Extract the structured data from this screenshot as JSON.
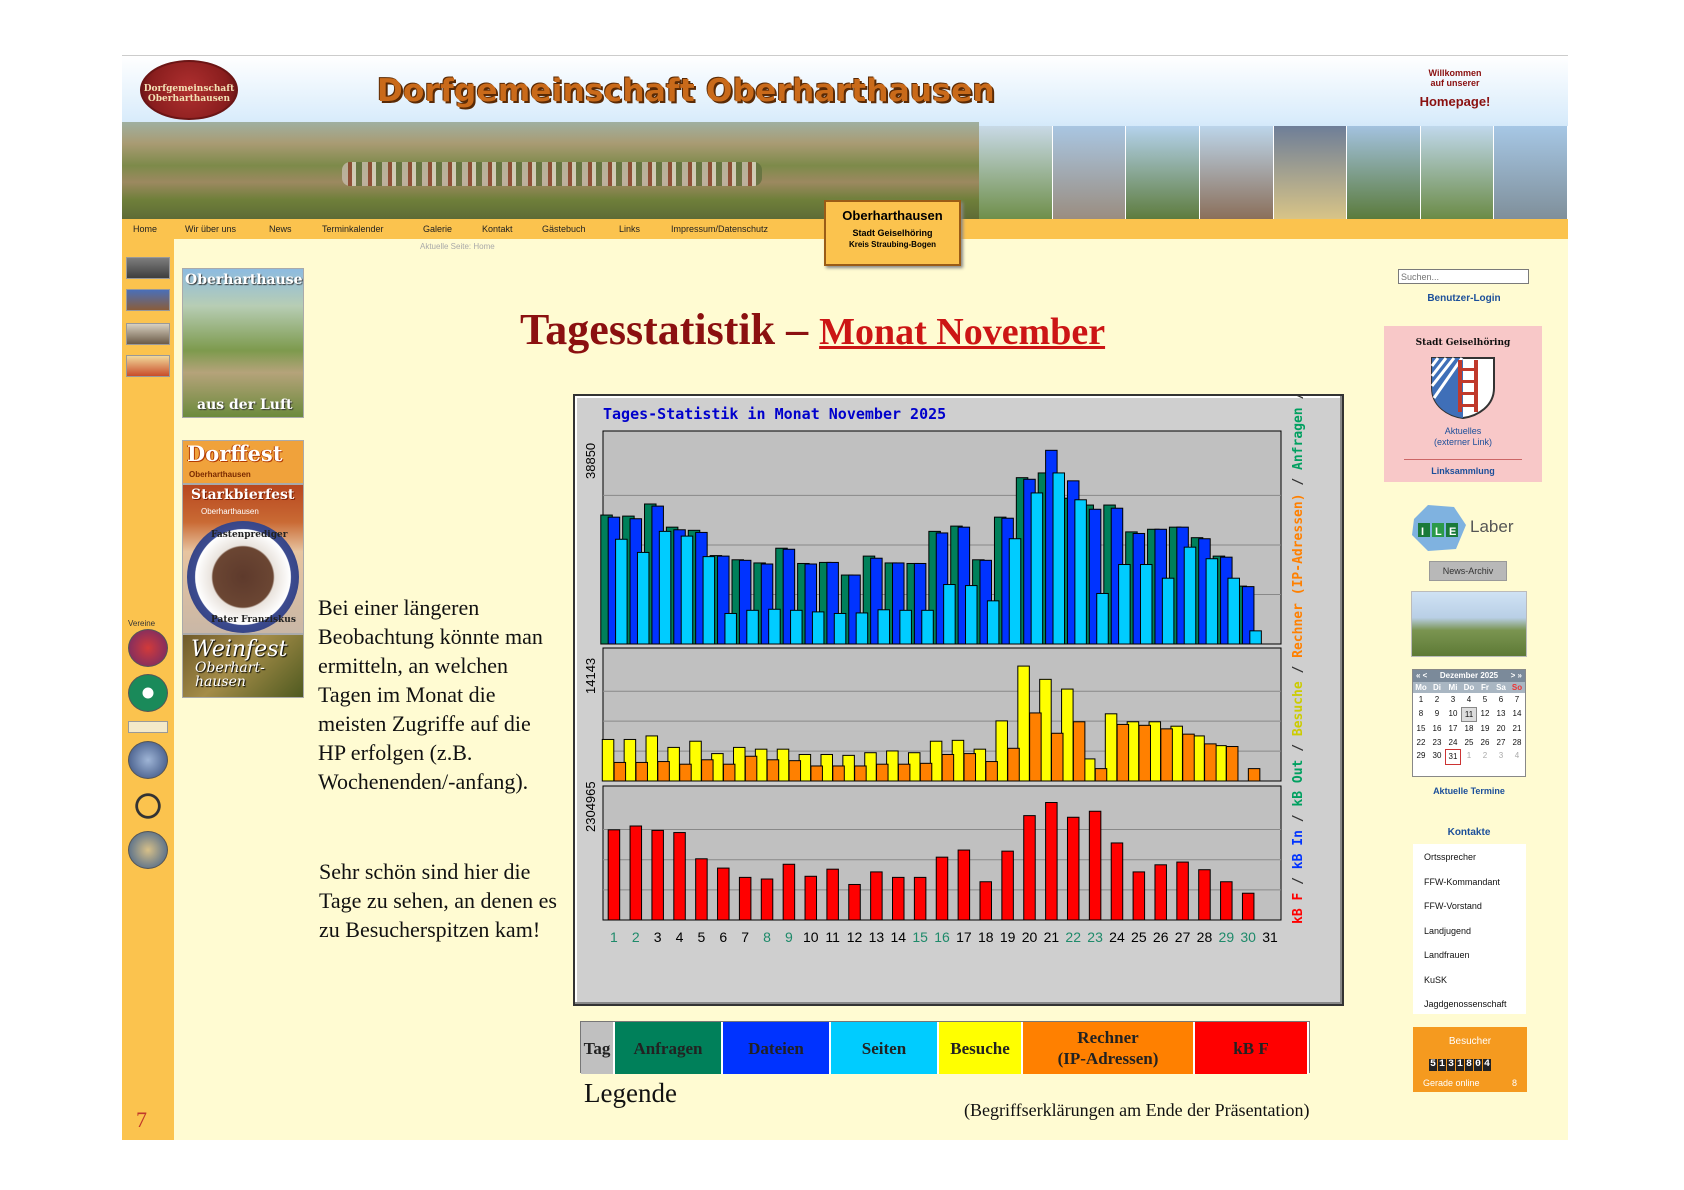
{
  "header": {
    "logo_text": "Dorfgemeinschaft Oberharthausen",
    "site_title": "Dorfgemeinschaft Oberharthausen",
    "welcome_line1": "Willkommen",
    "welcome_line2": "auf unserer",
    "welcome_line3": "Homepage!",
    "place_title": "Oberharthausen",
    "place_line2": "Stadt Geiselhöring",
    "place_line3": "Kreis Straubing-Bogen"
  },
  "nav": {
    "items": [
      "Home",
      "Wir über uns",
      "News",
      "Terminkalender",
      "Galerie",
      "Kontakt",
      "Gästebuch",
      "Links",
      "Impressum/Datenschutz"
    ],
    "current_page": "Aktuelle Seite: Home"
  },
  "left_sidebar": {
    "vereine_label": "Vereine",
    "tile_air_top": "Oberharthausen",
    "tile_air_bottom": "aus der Luft",
    "tile_dorffest": "Dorffest",
    "tile_dorffest_sub": "Oberharthausen",
    "tile_stark": "Starkbierfest",
    "tile_stark_sub": "Oberharthausen",
    "tile_stark_ring_top": "Fastenprediger",
    "tile_stark_ring_bottom": "Pater Franziskus",
    "tile_wein": "Weinfest",
    "tile_wein_sub1": "Oberhart-",
    "tile_wein_sub2": "hausen"
  },
  "slide": {
    "headline": "Tagesstatistik – ",
    "headline_link": "Monat November",
    "para1": "Bei einer längeren Beobachtung könnte man ermitteln, an welchen Tagen im Monat die meisten Zugriffe auf die HP erfolgen (z.B. Wochenenden/-anfang).",
    "para2": "Sehr schön sind hier die Tage zu sehen, an denen es zu Besucherspitzen kam!",
    "legend_caption": "Legende",
    "footnote": "(Begriffserklärungen am Ende der Präsentation)",
    "page_number": "7"
  },
  "legend": [
    {
      "label": "Tag",
      "color": "#c0c0c0"
    },
    {
      "label": "Anfragen",
      "color": "#00805a"
    },
    {
      "label": "Dateien",
      "color": "#0033ff"
    },
    {
      "label": "Seiten",
      "color": "#00ccff"
    },
    {
      "label": "Besuche",
      "color": "#ffff00"
    },
    {
      "label": "Rechner (IP-Adressen)",
      "color": "#ff8000"
    },
    {
      "label": "kB F",
      "color": "#ff0000"
    }
  ],
  "chart_data": {
    "type": "bar",
    "title": "Tages-Statistik in Monat November 2025",
    "x": [
      1,
      2,
      3,
      4,
      5,
      6,
      7,
      8,
      9,
      10,
      11,
      12,
      13,
      14,
      15,
      16,
      17,
      18,
      19,
      20,
      21,
      22,
      23,
      24,
      25,
      26,
      27,
      28,
      29,
      30,
      31
    ],
    "x_highlight_days": [
      1,
      2,
      8,
      9,
      15,
      16,
      22,
      23,
      29,
      30
    ],
    "panel1": {
      "ymax_label": "38850",
      "ymax": 38850,
      "side_label_parts": [
        "Anfragen",
        " / ",
        "Dateien",
        " / ",
        "Seiten"
      ],
      "series": [
        {
          "name": "Anfragen",
          "color": "#00805a",
          "values": [
            24500,
            24300,
            26600,
            22200,
            21600,
            16800,
            16000,
            15400,
            18200,
            15300,
            15500,
            13100,
            16700,
            15400,
            15300,
            21400,
            22400,
            16000,
            24100,
            31600,
            32500,
            27700,
            26400,
            26400,
            21300,
            21800,
            22200,
            20200,
            16700,
            11000,
            0
          ]
        },
        {
          "name": "Dateien",
          "color": "#0033ff",
          "values": [
            24100,
            23800,
            26200,
            21700,
            21200,
            16700,
            15900,
            15200,
            18000,
            15200,
            15500,
            13100,
            16300,
            15400,
            15300,
            21100,
            22200,
            15900,
            23900,
            31300,
            36800,
            31000,
            25600,
            25800,
            21000,
            21800,
            22200,
            20000,
            16500,
            10900,
            0
          ]
        },
        {
          "name": "Seiten",
          "color": "#00ccff",
          "values": [
            19900,
            17400,
            21400,
            20500,
            16600,
            5800,
            6400,
            6600,
            6400,
            6100,
            5800,
            5900,
            6500,
            6400,
            6400,
            11300,
            11100,
            8200,
            20000,
            28700,
            32500,
            27400,
            9600,
            15100,
            15100,
            12500,
            18400,
            16200,
            12500,
            2500,
            0
          ]
        }
      ]
    },
    "panel2": {
      "ymax_label": "14143",
      "ymax": 14143,
      "side_label_parts": [
        "Besuche",
        " / ",
        "Rechner (IP-Adressen)"
      ],
      "series": [
        {
          "name": "Besuche",
          "color": "#ffff00",
          "values": [
            4700,
            4700,
            5100,
            3800,
            4500,
            3100,
            3800,
            3600,
            3600,
            3000,
            3000,
            2900,
            3200,
            3400,
            3200,
            4500,
            4600,
            3600,
            6800,
            13000,
            11500,
            10400,
            2500,
            7600,
            6700,
            6700,
            6200,
            5100,
            4000,
            0,
            0
          ]
        },
        {
          "name": "Rechner (IP-Adressen)",
          "color": "#ff8000",
          "values": [
            2100,
            2100,
            2200,
            1900,
            2400,
            1900,
            2800,
            2400,
            2300,
            1700,
            1700,
            1700,
            1900,
            1900,
            2000,
            3000,
            3100,
            2200,
            3700,
            7700,
            5400,
            6700,
            1400,
            6400,
            6300,
            5900,
            5300,
            4200,
            3900,
            1400,
            0
          ]
        }
      ]
    },
    "panel3": {
      "ymax_label": "2304965",
      "ymax": 2304965,
      "side_label_parts": [
        "kB F",
        " / ",
        "kB In",
        " / ",
        "kB Out"
      ],
      "series": [
        {
          "name": "kB F",
          "color": "#ff0000",
          "values": [
            1650000,
            1720000,
            1640000,
            1600000,
            1120000,
            950000,
            780000,
            750000,
            1020000,
            800000,
            930000,
            650000,
            880000,
            780000,
            780000,
            1150000,
            1280000,
            700000,
            1260000,
            1910000,
            2150000,
            1880000,
            1990000,
            1410000,
            880000,
            1010000,
            1060000,
            920000,
            700000,
            490000,
            0
          ]
        }
      ]
    }
  },
  "right_sidebar": {
    "search_placeholder": "Suchen...",
    "login": "Benutzer-Login",
    "geisel_title": "Stadt Geiselhöring",
    "geisel_link1": "Aktuelles",
    "geisel_link2": "(externer Link)",
    "geisel_links": "Linksammlung",
    "ile_text": "Laber",
    "news_button": "News-Archiv",
    "calendar": {
      "prev": "« <",
      "title": "Dezember 2025",
      "next": "> »",
      "dow": [
        "Mo",
        "Di",
        "Mi",
        "Do",
        "Fr",
        "Sa",
        "So"
      ],
      "days": [
        {
          "d": "1"
        },
        {
          "d": "2"
        },
        {
          "d": "3"
        },
        {
          "d": "4"
        },
        {
          "d": "5"
        },
        {
          "d": "6"
        },
        {
          "d": "7"
        },
        {
          "d": "8"
        },
        {
          "d": "9"
        },
        {
          "d": "10"
        },
        {
          "d": "11",
          "cls": "today"
        },
        {
          "d": "12"
        },
        {
          "d": "13"
        },
        {
          "d": "14"
        },
        {
          "d": "15"
        },
        {
          "d": "16"
        },
        {
          "d": "17"
        },
        {
          "d": "18"
        },
        {
          "d": "19"
        },
        {
          "d": "20"
        },
        {
          "d": "21"
        },
        {
          "d": "22"
        },
        {
          "d": "23"
        },
        {
          "d": "24"
        },
        {
          "d": "25"
        },
        {
          "d": "26"
        },
        {
          "d": "27"
        },
        {
          "d": "28"
        },
        {
          "d": "29"
        },
        {
          "d": "30"
        },
        {
          "d": "31",
          "cls": "sel"
        },
        {
          "d": "1",
          "cls": "other"
        },
        {
          "d": "2",
          "cls": "other"
        },
        {
          "d": "3",
          "cls": "other"
        },
        {
          "d": "4",
          "cls": "other"
        }
      ]
    },
    "termine": "Aktuelle Termine",
    "kontakte_title": "Kontakte",
    "kontakte": [
      "Ortssprecher",
      "FFW-Kommandant",
      "FFW-Vorstand",
      "Landjugend",
      "Landfrauen",
      "KuSK",
      "Jagdgenossenschaft"
    ],
    "besucher_title": "Besucher",
    "counter": [
      "5",
      "1",
      "3",
      "1",
      "8",
      "0",
      "4"
    ],
    "online_label": "Gerade online",
    "online_count": "8"
  }
}
